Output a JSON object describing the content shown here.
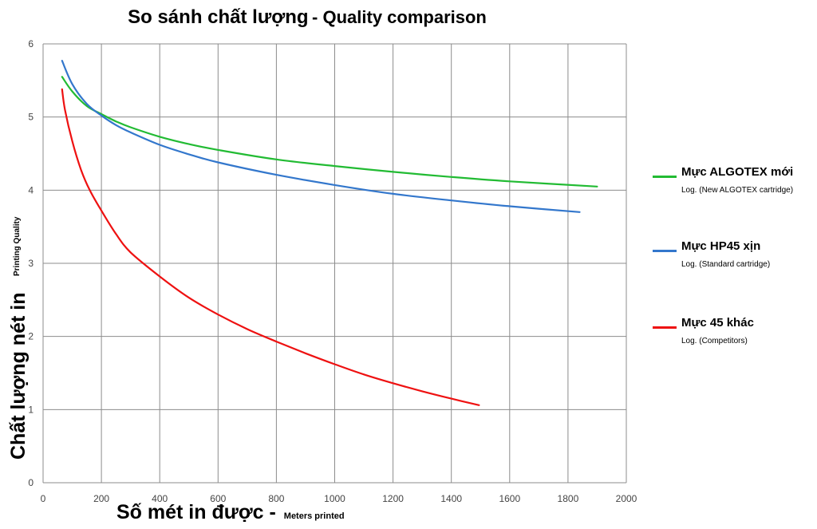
{
  "chart_data": {
    "type": "line",
    "title_vi": "So sánh chất lượng",
    "title_en": "- Quality comparison",
    "ylabel_vi": "Chất lượng nét in",
    "ylabel_en": "Printing Quality",
    "xlabel_vi": "Số mét in được -",
    "xlabel_en": "Meters printed",
    "xlim": [
      0,
      2000
    ],
    "ylim": [
      0,
      6
    ],
    "xticks": [
      "0",
      "200",
      "400",
      "600",
      "800",
      "1000",
      "1200",
      "1400",
      "1600",
      "1800",
      "2000"
    ],
    "yticks": [
      "0",
      "1",
      "2",
      "3",
      "4",
      "5",
      "6"
    ],
    "grid": true,
    "legend_position": "right",
    "series": [
      {
        "name": "Mực ALGOTEX mới",
        "subtitle": "Log. (New ALGOTEX cartridge)",
        "color": "#22bb33",
        "x": [
          65,
          100,
          150,
          200,
          250,
          300,
          400,
          500,
          600,
          800,
          1000,
          1200,
          1400,
          1600,
          1900
        ],
        "y": [
          5.55,
          5.35,
          5.15,
          5.04,
          4.94,
          4.86,
          4.73,
          4.63,
          4.55,
          4.42,
          4.33,
          4.25,
          4.18,
          4.12,
          4.05
        ]
      },
      {
        "name": "Mực HP45 xịn",
        "subtitle": "Log. (Standard cartridge)",
        "color": "#3377cc",
        "x": [
          65,
          100,
          150,
          200,
          250,
          300,
          400,
          500,
          600,
          800,
          1000,
          1200,
          1400,
          1600,
          1840
        ],
        "y": [
          5.77,
          5.45,
          5.18,
          5.02,
          4.89,
          4.79,
          4.62,
          4.49,
          4.38,
          4.21,
          4.07,
          3.95,
          3.86,
          3.78,
          3.7
        ]
      },
      {
        "name": "Mực 45 khác",
        "subtitle": "Log. (Competitors)",
        "color": "#ee1111",
        "x": [
          65,
          75,
          100,
          130,
          160,
          200,
          250,
          300,
          400,
          500,
          600,
          700,
          800,
          900,
          1000,
          1100,
          1200,
          1300,
          1400,
          1495
        ],
        "y": [
          5.38,
          5.1,
          4.67,
          4.28,
          4.0,
          3.72,
          3.4,
          3.15,
          2.82,
          2.53,
          2.3,
          2.1,
          1.93,
          1.77,
          1.62,
          1.48,
          1.36,
          1.25,
          1.15,
          1.06
        ]
      }
    ]
  }
}
